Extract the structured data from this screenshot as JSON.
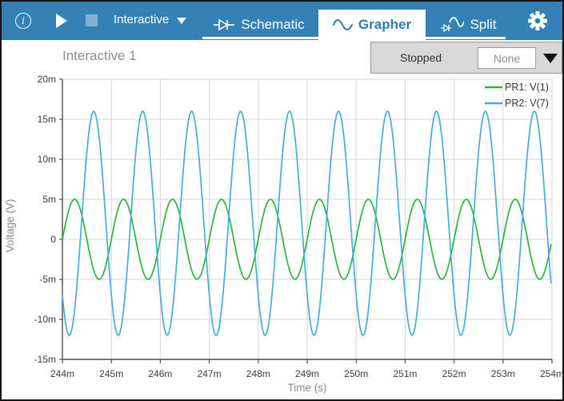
{
  "toolbar": {
    "bg_color": "#3482b5",
    "mode_label": "Interactive",
    "tabs": [
      {
        "label": "Schematic"
      },
      {
        "label": "Grapher"
      },
      {
        "label": "Split"
      }
    ],
    "active_tab": "Grapher",
    "active_tab_text_color": "#2c7cb0"
  },
  "titlebar": {
    "title": "Interactive 1",
    "status": "Stopped",
    "selector_value": "None"
  },
  "chart_data": {
    "type": "line",
    "xlabel": "Time (s)",
    "ylabel": "Voltage (V)",
    "xlim_ms": [
      244,
      254
    ],
    "ylim_mV": [
      -15,
      20
    ],
    "x_tick_labels": [
      "244m",
      "245m",
      "246m",
      "247m",
      "248m",
      "249m",
      "250m",
      "251m",
      "252m",
      "253m",
      "254m"
    ],
    "x_tick_values_ms": [
      244,
      245,
      246,
      247,
      248,
      249,
      250,
      251,
      252,
      253,
      254
    ],
    "y_tick_labels": [
      "20m",
      "15m",
      "10m",
      "5m",
      "0",
      "-5m",
      "-10m",
      "-15m"
    ],
    "y_tick_values_mV": [
      20,
      15,
      10,
      5,
      0,
      -5,
      -10,
      -15
    ],
    "grid": true,
    "legend_position": "top-right",
    "series": [
      {
        "name": "PR1: V(1)",
        "color": "#2eb43b",
        "waveform": "sine",
        "amplitude_mV": 5,
        "offset_mV": 0,
        "period_ms": 1,
        "t_zero_rise_ms": 244.0,
        "peak_mV": 5,
        "trough_mV": -5
      },
      {
        "name": "PR2: V(7)",
        "color": "#45ace1",
        "waveform": "sine",
        "amplitude_mV": 14,
        "offset_mV": 2,
        "period_ms": 1,
        "t_zero_rise_ms": 244.39,
        "peak_mV": 16,
        "trough_mV": -12
      }
    ],
    "colors": {
      "grid": "#d6d6d6",
      "axis_main": "#4d4d4d",
      "axis_border": "#bdbdbd",
      "tick_text": "#3d3d3d",
      "axis_title_text": "#8a8a8a",
      "legend_text": "#333333"
    }
  }
}
